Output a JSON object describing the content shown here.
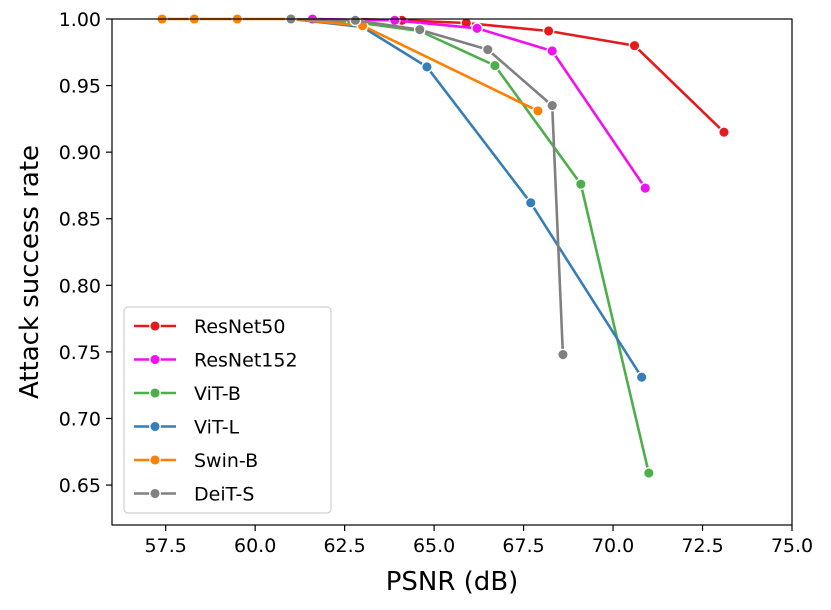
{
  "chart_data": {
    "type": "line",
    "title": "",
    "xlabel": "PSNR (dB)",
    "ylabel": "Attack success rate",
    "xlim": [
      56.0,
      75.0
    ],
    "ylim": [
      0.62,
      1.0
    ],
    "xticks": [
      57.5,
      60.0,
      62.5,
      65.0,
      67.5,
      70.0,
      72.5,
      75.0
    ],
    "xtick_labels": [
      "57.5",
      "60.0",
      "62.5",
      "65.0",
      "67.5",
      "70.0",
      "72.5",
      "75.0"
    ],
    "yticks": [
      0.65,
      0.7,
      0.75,
      0.8,
      0.85,
      0.9,
      0.95,
      1.0
    ],
    "ytick_labels": [
      "0.65",
      "0.70",
      "0.75",
      "0.80",
      "0.85",
      "0.90",
      "0.95",
      "1.00"
    ],
    "grid": false,
    "legend_position": "lower-left",
    "series": [
      {
        "name": "ResNet50",
        "color": "#e41a1c",
        "x": [
          62.8,
          64.1,
          65.9,
          68.2,
          70.6,
          73.1
        ],
        "y": [
          1.0,
          0.999,
          0.997,
          0.991,
          0.98,
          0.915
        ]
      },
      {
        "name": "ResNet152",
        "color": "#f011f0",
        "x": [
          61.6,
          63.9,
          66.2,
          68.3,
          70.9
        ],
        "y": [
          1.0,
          0.999,
          0.993,
          0.976,
          0.873
        ]
      },
      {
        "name": "ViT-B",
        "color": "#4daf4a",
        "x": [
          61.0,
          62.7,
          64.6,
          66.7,
          69.1,
          71.0
        ],
        "y": [
          1.0,
          0.998,
          0.991,
          0.965,
          0.876,
          0.659
        ]
      },
      {
        "name": "ViT-L",
        "color": "#377eb8",
        "x": [
          61.0,
          63.0,
          64.8,
          67.7,
          70.8
        ],
        "y": [
          1.0,
          0.994,
          0.964,
          0.862,
          0.731
        ]
      },
      {
        "name": "Swin-B",
        "color": "#ff7f00",
        "x": [
          57.4,
          58.3,
          59.5,
          61.0,
          63.0,
          67.9
        ],
        "y": [
          1.0,
          1.0,
          1.0,
          1.0,
          0.995,
          0.931
        ]
      },
      {
        "name": "DeiT-S",
        "color": "#808080",
        "x": [
          61.0,
          62.8,
          64.6,
          66.5,
          68.3,
          68.6
        ],
        "y": [
          1.0,
          0.999,
          0.992,
          0.977,
          0.935,
          0.748
        ]
      }
    ]
  }
}
